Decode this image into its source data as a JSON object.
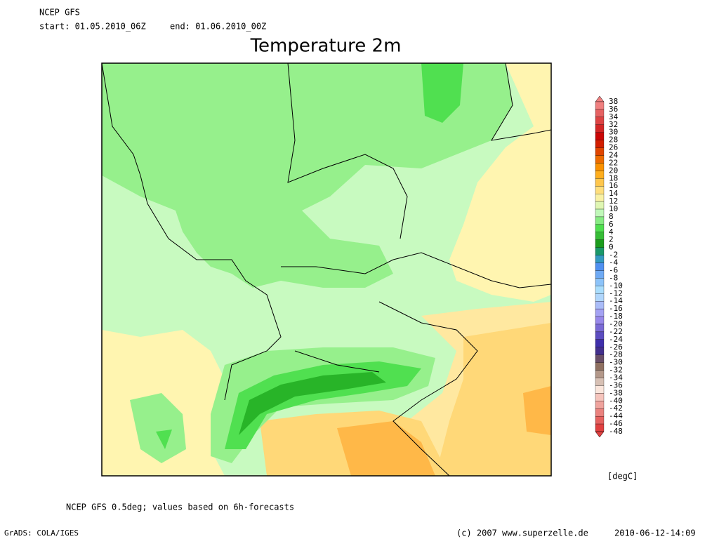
{
  "header": {
    "source": "NCEP GFS",
    "start": "start: 01.05.2010_06Z",
    "end": "end: 01.06.2010_00Z",
    "title": "Temperature 2m"
  },
  "legend": {
    "labels": [
      38,
      36,
      34,
      32,
      30,
      28,
      26,
      24,
      22,
      20,
      18,
      16,
      14,
      12,
      10,
      8,
      6,
      4,
      2,
      0,
      -2,
      -4,
      -6,
      -8,
      -10,
      -12,
      -14,
      -16,
      -18,
      -20,
      -22,
      -24,
      -26,
      -28,
      -30,
      -32,
      -34,
      -36,
      -38,
      -40,
      -42,
      -44,
      -46,
      -48
    ],
    "unit": "[degC]"
  },
  "footer": {
    "note": "NCEP GFS 0.5deg; values based on 6h-forecasts",
    "software": "GrADS: COLA/IGES",
    "copyright": "(c) 2007 www.superzelle.de",
    "timestamp": "2010-06-12-14:09"
  }
}
